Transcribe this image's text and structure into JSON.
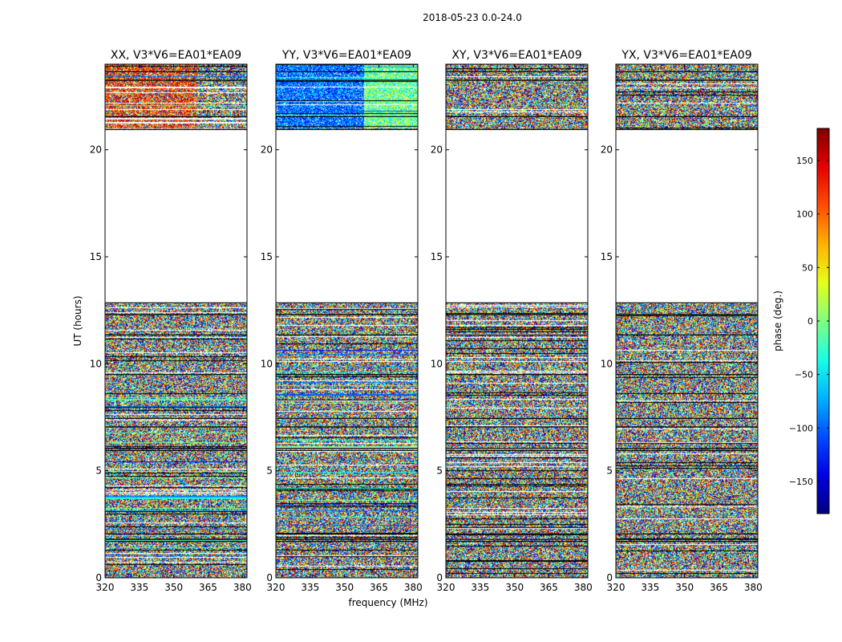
{
  "suptitle": "2018-05-23 0.0-24.0",
  "chart_data": {
    "type": "heatmap",
    "title": "2018-05-23 0.0-24.0",
    "xlabel": "frequency (MHz)",
    "ylabel": "UT (hours)",
    "xlim": [
      320,
      382
    ],
    "ylim": [
      0,
      24
    ],
    "xticks": [
      320,
      335,
      350,
      365,
      380
    ],
    "yticks": [
      0,
      5,
      10,
      15,
      20
    ],
    "panels": [
      {
        "title": "XX, V3*V6=EA01*EA09",
        "scheme": "xx"
      },
      {
        "title": "YY, V3*V6=EA01*EA09",
        "scheme": "yy"
      },
      {
        "title": "XY, V3*V6=EA01*EA09",
        "scheme": "noise"
      },
      {
        "title": "YX, V3*V6=EA01*EA09",
        "scheme": "noise"
      }
    ],
    "data_gaps_ut": [
      [
        12.85,
        20.95
      ]
    ],
    "flagged_rows_ut": [
      1.7,
      1.8,
      2.05,
      5.95,
      6.05,
      7.05,
      7.45,
      9.5,
      11.35,
      12.3,
      12.85,
      20.95,
      21.55,
      23.25,
      23.65
    ],
    "colorbar": {
      "label": "phase (deg.)",
      "range": [
        -180,
        180
      ],
      "ticks": [
        -150,
        -100,
        -50,
        0,
        50,
        100,
        150
      ],
      "tick_labels": [
        "−150",
        "−100",
        "−50",
        "0",
        "50",
        "100",
        "150"
      ],
      "colormap": "jet"
    }
  }
}
